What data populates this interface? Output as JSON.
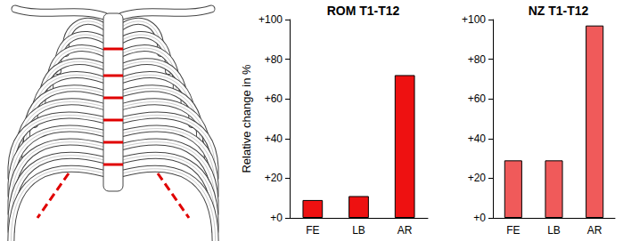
{
  "chart_data": [
    {
      "type": "bar",
      "title": "ROM T1-T12",
      "ylabel": "Relative change in %",
      "categories": [
        "FE",
        "LB",
        "AR"
      ],
      "values": [
        9,
        11,
        72
      ],
      "color": "#ee1111",
      "ylim": [
        0,
        100
      ],
      "yticks": [
        {
          "value": 0,
          "label": "+0"
        },
        {
          "value": 20,
          "label": "+20"
        },
        {
          "value": 40,
          "label": "+40"
        },
        {
          "value": 60,
          "label": "+60"
        },
        {
          "value": 80,
          "label": "+80"
        },
        {
          "value": 100,
          "label": "+100"
        }
      ],
      "grid": false
    },
    {
      "type": "bar",
      "title": "NZ T1-T12",
      "categories": [
        "FE",
        "LB",
        "AR"
      ],
      "values": [
        29,
        29,
        97
      ],
      "color": "#f05a5a",
      "ylim": [
        0,
        100
      ],
      "yticks": [
        {
          "value": 0,
          "label": "+0"
        },
        {
          "value": 20,
          "label": "+20"
        },
        {
          "value": 40,
          "label": "+40"
        },
        {
          "value": 60,
          "label": "+60"
        },
        {
          "value": 80,
          "label": "+80"
        },
        {
          "value": 100,
          "label": "+100"
        }
      ],
      "grid": false
    }
  ]
}
